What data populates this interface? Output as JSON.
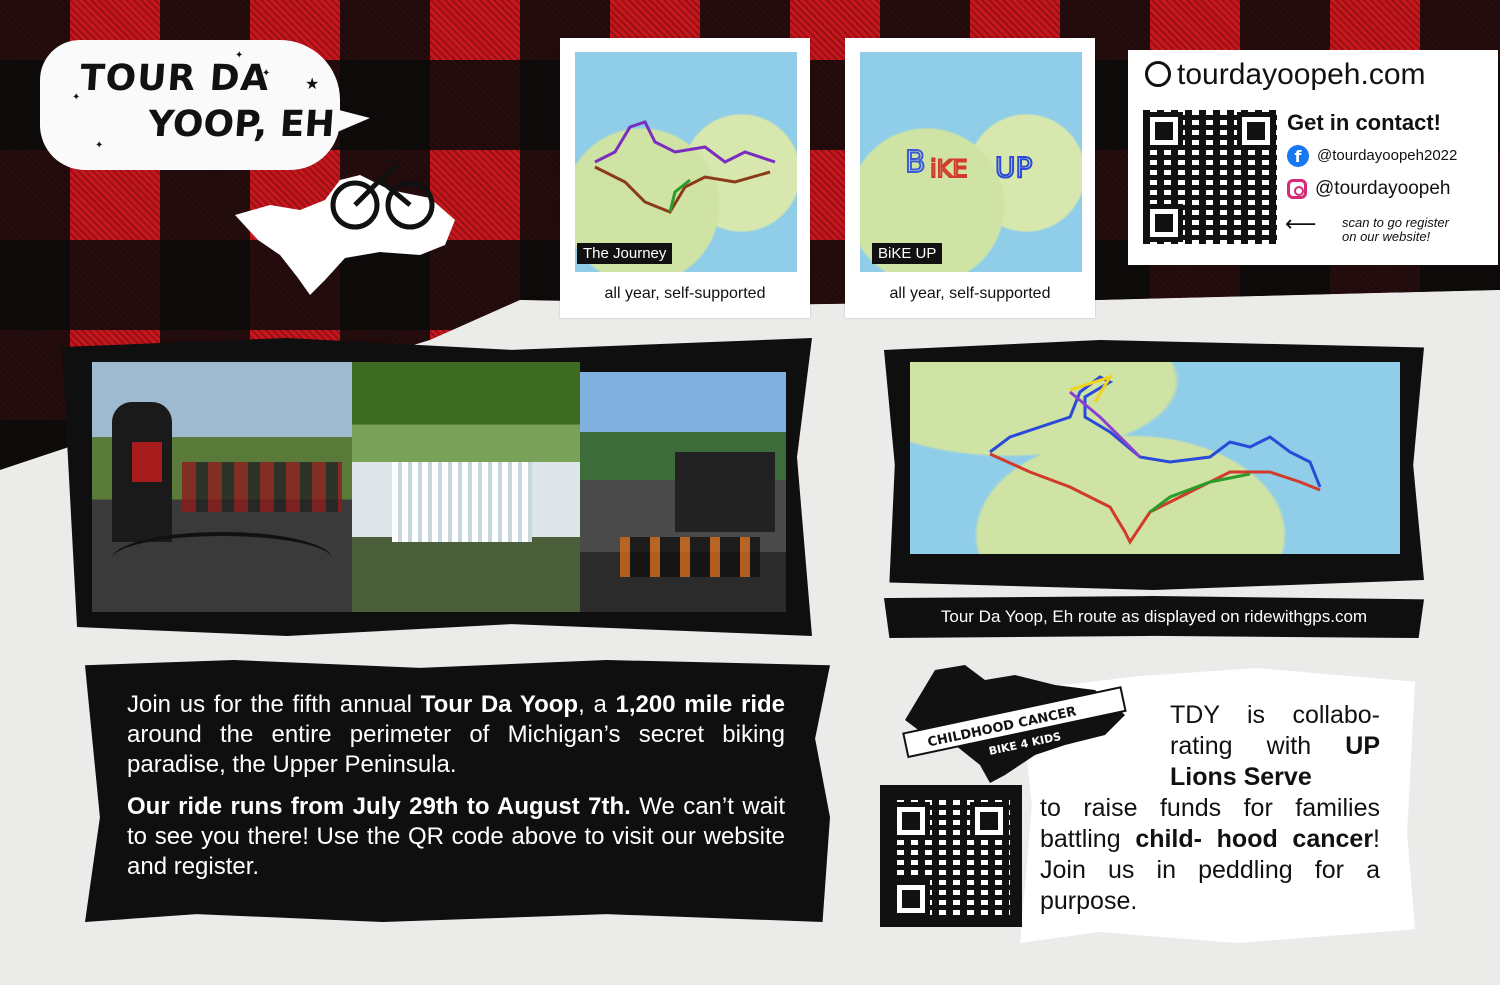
{
  "logo": {
    "line1": "TOUR DA",
    "line2": "YOOP, EH"
  },
  "maps": [
    {
      "label": "The Journey",
      "caption": "all year, self-supported"
    },
    {
      "label": "BiKE UP",
      "caption": "all year, self-supported"
    }
  ],
  "contact": {
    "website": "tourdayoopeh.com",
    "heading": "Get in contact!",
    "facebook": "@tourdayoopeh2022",
    "instagram": "@tourdayoopeh",
    "scan_note_1": "scan to go register",
    "scan_note_2": "on our website!"
  },
  "route_caption": "Tour Da Yoop, Eh route as displayed on ridewithgps.com",
  "about": {
    "p1_a": "Join us for the fifth annual ",
    "p1_b": "Tour Da Yoop",
    "p1_c": ", a ",
    "p1_d": "1,200 mile ride",
    "p1_e": " around the entire perimeter of Michigan’s secret biking paradise, the Upper Peninsula.",
    "p2_a": "Our ride runs from July 29th to August 7th.",
    "p2_b": " We can’t wait to see you there! Use the QR code above to visit our website and register."
  },
  "badge": {
    "line1": "CHILDHOOD CANCER",
    "line2": "BIKE 4 KIDS"
  },
  "charity": {
    "a": "TDY is collabo- rating with ",
    "b": "UP Lions Serve",
    "c": " to raise funds for families battling ",
    "d": "child- hood cancer",
    "e": "! Join us in peddling for a purpose."
  },
  "colors": {
    "plaid_red": "#c8161d",
    "ink": "#0f0f0f",
    "water": "#8fcde8",
    "land": "#cfe3a5"
  }
}
